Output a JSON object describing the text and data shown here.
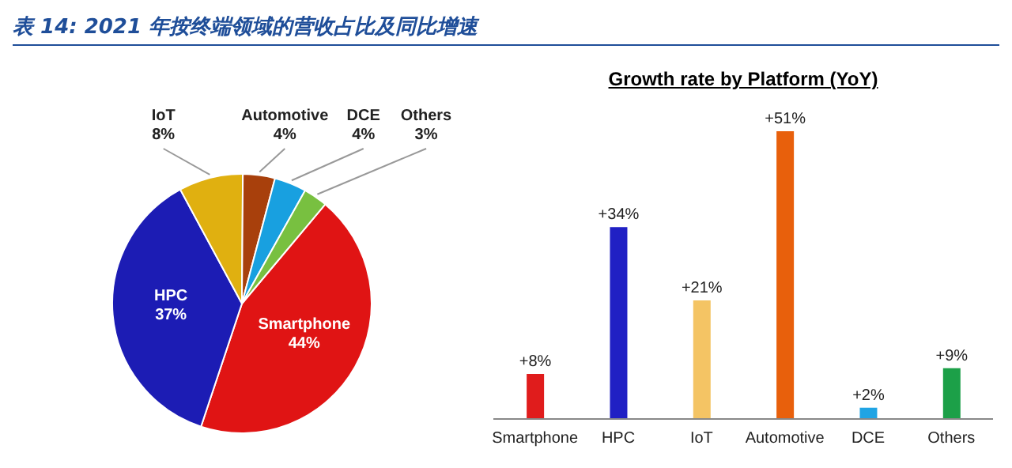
{
  "chart_data": [
    {
      "type": "pie",
      "title": "表 14: 2021 年按终端领域的营收占比及同比增速",
      "categories": [
        "Smartphone",
        "HPC",
        "IoT",
        "Automotive",
        "DCE",
        "Others"
      ],
      "values": [
        44,
        37,
        8,
        4,
        4,
        3
      ],
      "value_labels": [
        "44%",
        "37%",
        "8%",
        "4%",
        "4%",
        "3%"
      ],
      "colors": [
        "#e01414",
        "#1c1cb4",
        "#e0b010",
        "#a8400c",
        "#18a0e0",
        "#78c040"
      ]
    },
    {
      "type": "bar",
      "title": "Growth rate by Platform (YoY)",
      "categories": [
        "Smartphone",
        "HPC",
        "IoT",
        "Automotive",
        "DCE",
        "Others"
      ],
      "values": [
        8,
        34,
        21,
        51,
        2,
        9
      ],
      "value_labels": [
        "+8%",
        "+34%",
        "+21%",
        "+51%",
        "+2%",
        "+9%"
      ],
      "colors": [
        "#e01c1c",
        "#2020c4",
        "#f4c464",
        "#e8600c",
        "#20a4e4",
        "#1ca048"
      ],
      "tick_labels": "x"
    }
  ]
}
